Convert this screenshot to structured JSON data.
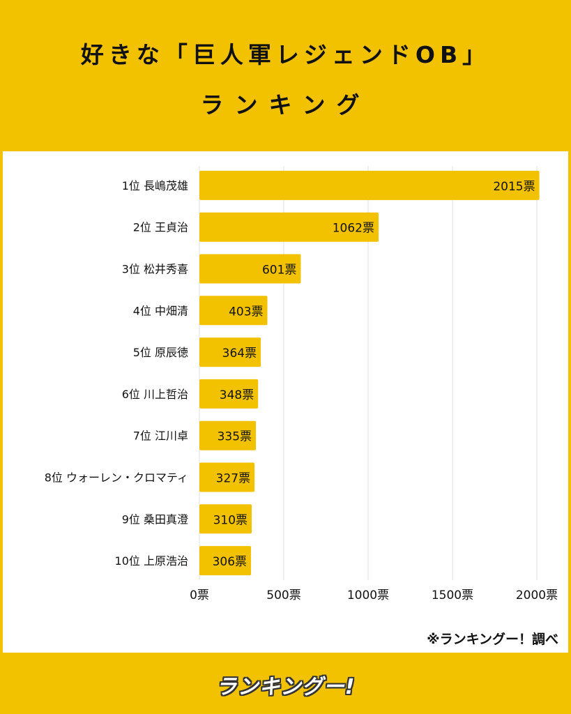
{
  "header": {
    "title_line1": "好きな「巨人軍レジェンドOB」",
    "title_line2": "ランキング"
  },
  "chart_data": {
    "type": "bar",
    "orientation": "horizontal",
    "categories": [
      "1位 長嶋茂雄",
      "2位 王貞治",
      "3位 松井秀喜",
      "4位 中畑清",
      "5位 原辰徳",
      "6位 川上哲治",
      "7位 江川卓",
      "8位 ウォーレン・クロマティ",
      "9位 桑田真澄",
      "10位 上原浩治"
    ],
    "values": [
      2015,
      1062,
      601,
      403,
      364,
      348,
      335,
      327,
      310,
      306
    ],
    "value_labels": [
      "2015票",
      "1062票",
      "601票",
      "403票",
      "364票",
      "348票",
      "335票",
      "327票",
      "310票",
      "306票"
    ],
    "xlim": [
      0,
      2000
    ],
    "x_ticks": [
      0,
      500,
      1000,
      1500,
      2000
    ],
    "x_tick_labels": [
      "0票",
      "500票",
      "1000票",
      "1500票",
      "2000票"
    ],
    "grid": true,
    "bar_color": "#F2C200"
  },
  "footer": {
    "credit": "※ランキングー！調べ",
    "logo_text": "ランキングー!"
  },
  "colors": {
    "background": "#F2C200",
    "panel": "#FFFFFF",
    "text": "#111111",
    "grid": "#E2E2E2"
  }
}
